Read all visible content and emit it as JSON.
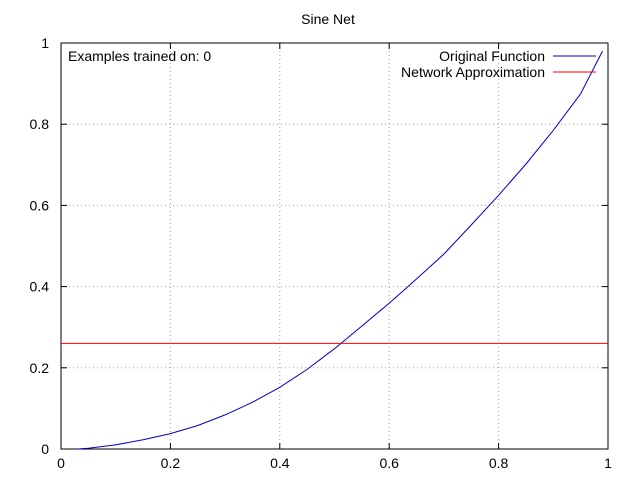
{
  "chart_data": {
    "type": "line",
    "title": "Sine Net",
    "annotation": "Examples trained on: 0",
    "xlim": [
      0,
      1
    ],
    "ylim": [
      0,
      1
    ],
    "xticks": [
      "0",
      "0.2",
      "0.4",
      "0.6",
      "0.8",
      "1"
    ],
    "yticks": [
      "0",
      "0.2",
      "0.4",
      "0.6",
      "0.8",
      "1"
    ],
    "xtick_values": [
      0,
      0.2,
      0.4,
      0.6,
      0.8,
      1
    ],
    "ytick_values": [
      0,
      0.2,
      0.4,
      0.6,
      0.8,
      1
    ],
    "grid": true,
    "legend_position": "top-right",
    "series": [
      {
        "name": "Original Function",
        "color": "#0000cc",
        "x": [
          0.03,
          0.05,
          0.1,
          0.15,
          0.2,
          0.25,
          0.3,
          0.35,
          0.4,
          0.45,
          0.5,
          0.55,
          0.6,
          0.65,
          0.7,
          0.75,
          0.8,
          0.85,
          0.9,
          0.95,
          0.99
        ],
        "y": [
          0.0,
          0.002,
          0.01,
          0.023,
          0.038,
          0.058,
          0.084,
          0.115,
          0.152,
          0.196,
          0.247,
          0.303,
          0.359,
          0.419,
          0.48,
          0.552,
          0.625,
          0.702,
          0.785,
          0.875,
          0.98
        ]
      },
      {
        "name": "Network Approximation",
        "color": "#ff0000",
        "x": [
          0.0,
          1.0
        ],
        "y": [
          0.26,
          0.26
        ]
      }
    ]
  }
}
